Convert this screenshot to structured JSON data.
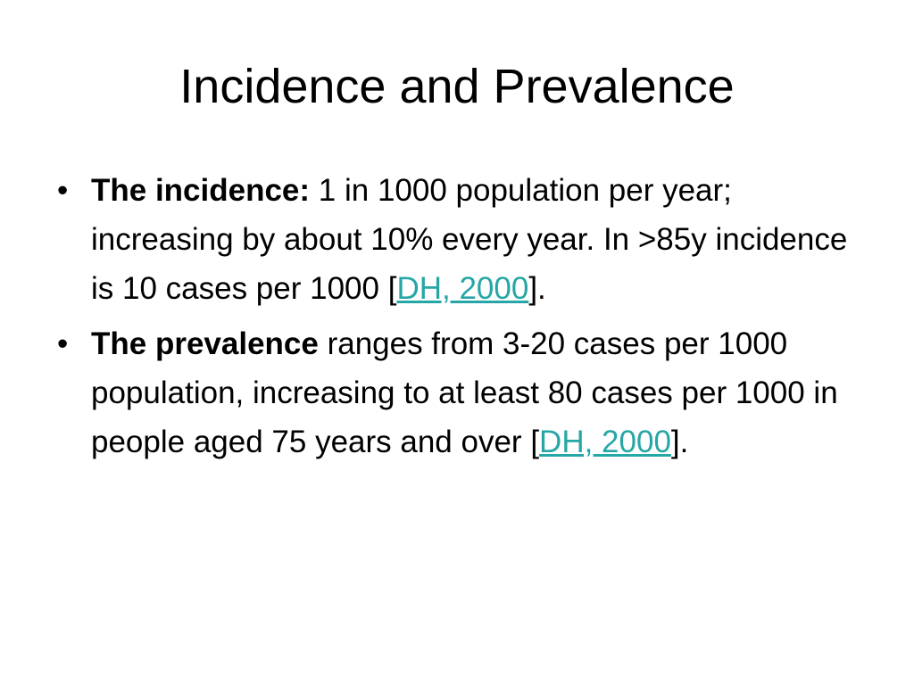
{
  "title": "Incidence and Prevalence",
  "bullets": [
    {
      "bullet": "•",
      "label": "The incidence:",
      "text": " 1 in 1000 population per year; increasing by about 10% every year. In >85y incidence is 10 cases per 1000 ",
      "open_bracket": "[",
      "link": "DH, 2000",
      "close": "]."
    },
    {
      "bullet": "•",
      "label": "The prevalence",
      "text": " ranges from 3-20 cases per 1000 population, increasing to at least 80 cases per 1000 in people aged 75 years and over ",
      "open_bracket": "[",
      "link": "DH, 2000",
      "close": "]."
    }
  ],
  "colors": {
    "background": "#ffffff",
    "text": "#000000",
    "link": "#26a6a6"
  }
}
